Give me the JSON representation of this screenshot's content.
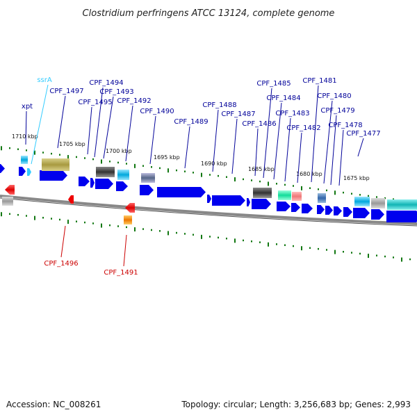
{
  "title": "Clostridium perfringens ATCC 13124, complete genome",
  "footer": {
    "accession": "Accession: NC_008261",
    "info": "Topology: circular; Length: 3,256,683 bp; Genes: 2,993"
  },
  "colors": {
    "cds": "#0000ee",
    "rna": "#33ccff",
    "label_forward": "#000099",
    "label_reverse": "#cc0000",
    "label_rna": "#33ccff",
    "tick": "#117711",
    "backbone": "#888888"
  },
  "ticks": [
    {
      "label": "1710 kbp"
    },
    {
      "label": "1705 kbp"
    },
    {
      "label": "1700 kbp"
    },
    {
      "label": "1695 kbp"
    },
    {
      "label": "1690 kbp"
    },
    {
      "label": "1685 kbp"
    },
    {
      "label": "1680 kbp"
    },
    {
      "label": "1675 kbp"
    }
  ],
  "labels": [
    {
      "name": "xpt",
      "strand": "forward"
    },
    {
      "name": "ssrA",
      "strand": "rna"
    },
    {
      "name": "CPF_1497",
      "strand": "forward"
    },
    {
      "name": "CPF_1494",
      "strand": "forward"
    },
    {
      "name": "CPF_1493",
      "strand": "forward"
    },
    {
      "name": "CPF_1495",
      "strand": "forward"
    },
    {
      "name": "CPF_1492",
      "strand": "forward"
    },
    {
      "name": "CPF_1490",
      "strand": "forward"
    },
    {
      "name": "CPF_1489",
      "strand": "forward"
    },
    {
      "name": "CPF_1488",
      "strand": "forward"
    },
    {
      "name": "CPF_1487",
      "strand": "forward"
    },
    {
      "name": "CPF_1486",
      "strand": "forward"
    },
    {
      "name": "CPF_1485",
      "strand": "forward"
    },
    {
      "name": "CPF_1484",
      "strand": "forward"
    },
    {
      "name": "CPF_1483",
      "strand": "forward"
    },
    {
      "name": "CPF_1482",
      "strand": "forward"
    },
    {
      "name": "CPF_1481",
      "strand": "forward"
    },
    {
      "name": "CPF_1480",
      "strand": "forward"
    },
    {
      "name": "CPF_1479",
      "strand": "forward"
    },
    {
      "name": "CPF_1478",
      "strand": "forward"
    },
    {
      "name": "CPF_1477",
      "strand": "forward"
    },
    {
      "name": "CPF_1496",
      "strand": "reverse"
    },
    {
      "name": "CPF_1491",
      "strand": "reverse"
    }
  ]
}
